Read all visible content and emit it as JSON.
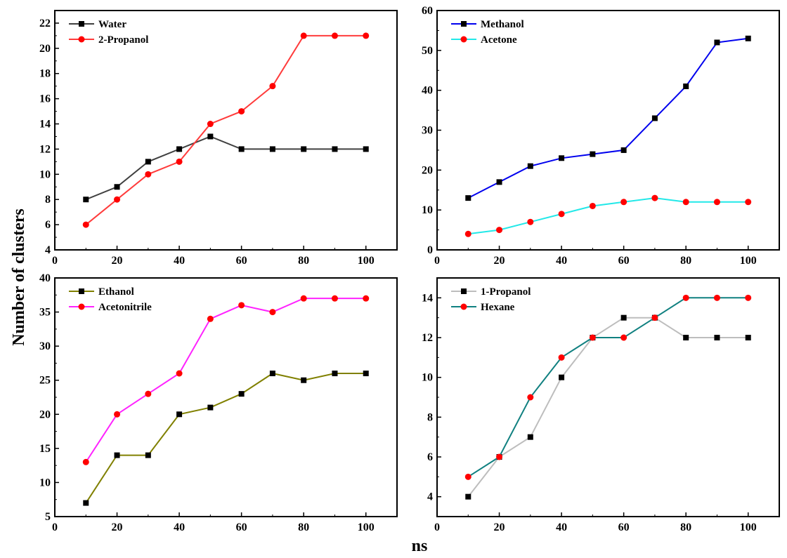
{
  "figure": {
    "ylabel": "Number of clusters",
    "xlabel": "ns"
  },
  "chart_data": [
    {
      "type": "line",
      "x": [
        10,
        20,
        30,
        40,
        50,
        60,
        70,
        80,
        90,
        100
      ],
      "xlim": [
        0,
        110
      ],
      "xticks": [
        0,
        20,
        40,
        60,
        80,
        100
      ],
      "ylim": [
        4,
        23
      ],
      "yticks": [
        4,
        6,
        8,
        10,
        12,
        14,
        16,
        18,
        20,
        22
      ],
      "grid": false,
      "legend_position": "top-left",
      "series": [
        {
          "name": "Water",
          "color": "#404040",
          "marker": "square",
          "marker_color": "#000000",
          "values": [
            8,
            9,
            11,
            12,
            13,
            12,
            12,
            12,
            12,
            12
          ]
        },
        {
          "name": "2-Propanol",
          "color": "#ff3b3b",
          "marker": "circle",
          "marker_color": "#ff0000",
          "values": [
            6,
            8,
            10,
            11,
            14,
            15,
            17,
            21,
            21,
            21
          ]
        }
      ]
    },
    {
      "type": "line",
      "x": [
        10,
        20,
        30,
        40,
        50,
        60,
        70,
        80,
        90,
        100
      ],
      "xlim": [
        0,
        110
      ],
      "xticks": [
        0,
        20,
        40,
        60,
        80,
        100
      ],
      "ylim": [
        0,
        60
      ],
      "yticks": [
        0,
        10,
        20,
        30,
        40,
        50,
        60
      ],
      "grid": false,
      "legend_position": "top-left",
      "series": [
        {
          "name": "Methanol",
          "color": "#0000ee",
          "marker": "square",
          "marker_color": "#000000",
          "values": [
            13,
            17,
            21,
            23,
            24,
            25,
            33,
            41,
            52,
            53
          ]
        },
        {
          "name": "Acetone",
          "color": "#22e8e8",
          "marker": "circle",
          "marker_color": "#ff0000",
          "values": [
            4,
            5,
            7,
            9,
            11,
            12,
            13,
            12,
            12,
            12
          ]
        }
      ]
    },
    {
      "type": "line",
      "x": [
        10,
        20,
        30,
        40,
        50,
        60,
        70,
        80,
        90,
        100
      ],
      "xlim": [
        0,
        110
      ],
      "xticks": [
        0,
        20,
        40,
        60,
        80,
        100
      ],
      "ylim": [
        5,
        40
      ],
      "yticks": [
        5,
        10,
        15,
        20,
        25,
        30,
        35,
        40
      ],
      "grid": false,
      "legend_position": "top-left",
      "series": [
        {
          "name": "Ethanol",
          "color": "#808000",
          "marker": "square",
          "marker_color": "#000000",
          "values": [
            7,
            14,
            14,
            20,
            21,
            23,
            26,
            25,
            26,
            26
          ]
        },
        {
          "name": "Acetonitrile",
          "color": "#ff22ff",
          "marker": "circle",
          "marker_color": "#ff0000",
          "values": [
            13,
            20,
            23,
            26,
            34,
            36,
            35,
            37,
            37,
            37
          ]
        }
      ]
    },
    {
      "type": "line",
      "x": [
        10,
        20,
        30,
        40,
        50,
        60,
        70,
        80,
        90,
        100
      ],
      "xlim": [
        0,
        110
      ],
      "xticks": [
        0,
        20,
        40,
        60,
        80,
        100
      ],
      "ylim": [
        3,
        15
      ],
      "yticks": [
        4,
        6,
        8,
        10,
        12,
        14
      ],
      "grid": false,
      "legend_position": "top-left",
      "series": [
        {
          "name": "1-Propanol",
          "color": "#bdbdbd",
          "marker": "square",
          "marker_color": "#000000",
          "values": [
            4,
            6,
            7,
            10,
            12,
            13,
            13,
            12,
            12,
            12
          ]
        },
        {
          "name": "Hexane",
          "color": "#108080",
          "marker": "circle",
          "marker_color": "#ff0000",
          "values": [
            5,
            6,
            9,
            11,
            12,
            12,
            13,
            14,
            14,
            14
          ]
        }
      ]
    }
  ]
}
